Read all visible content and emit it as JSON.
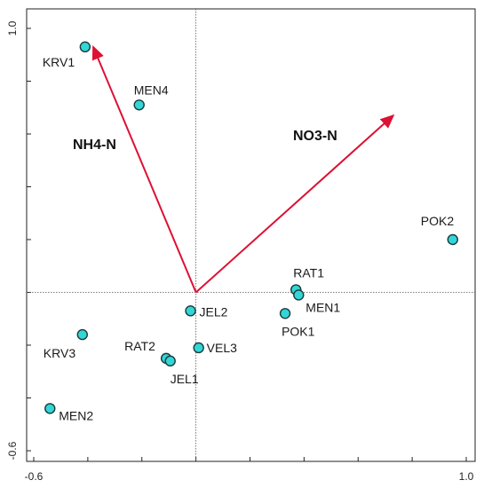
{
  "chart_data": {
    "type": "scatter",
    "title": "",
    "xlabel": "",
    "ylabel": "",
    "xlim": [
      -0.6,
      1.0
    ],
    "ylim": [
      -0.6,
      1.0
    ],
    "x_tick_labels": [
      {
        "value": -0.6,
        "text": "-0.6"
      },
      {
        "value": 1.0,
        "text": "1.0"
      }
    ],
    "y_tick_labels": [
      {
        "value": -0.6,
        "text": "-0.6"
      },
      {
        "value": 1.0,
        "text": "1.0"
      }
    ],
    "x_minor_ticks": [
      -0.4,
      -0.2,
      0.0,
      0.2,
      0.4,
      0.6,
      0.8
    ],
    "y_minor_ticks": [
      -0.4,
      -0.2,
      0.0,
      0.2,
      0.4,
      0.6,
      0.8
    ],
    "reference_lines": {
      "x": 0.0,
      "y": 0.0,
      "style": "dotted"
    },
    "vectors": [
      {
        "name": "NH4-N",
        "x": -0.38,
        "y": 0.93
      },
      {
        "name": "NO3-N",
        "x": 0.73,
        "y": 0.67
      }
    ],
    "points": [
      {
        "name": "KRV1",
        "x": -0.41,
        "y": 0.93
      },
      {
        "name": "MEN4",
        "x": -0.21,
        "y": 0.71
      },
      {
        "name": "POK2",
        "x": 0.95,
        "y": 0.2
      },
      {
        "name": "RAT1",
        "x": 0.37,
        "y": 0.01
      },
      {
        "name": "MEN1",
        "x": 0.38,
        "y": -0.01
      },
      {
        "name": "POK1",
        "x": 0.33,
        "y": -0.08
      },
      {
        "name": "JEL2",
        "x": -0.02,
        "y": -0.07
      },
      {
        "name": "KRV3",
        "x": -0.42,
        "y": -0.16
      },
      {
        "name": "VEL3",
        "x": 0.01,
        "y": -0.21
      },
      {
        "name": "RAT2",
        "x": -0.11,
        "y": -0.25
      },
      {
        "name": "JEL1",
        "x": -0.095,
        "y": -0.26
      },
      {
        "name": "MEN2",
        "x": -0.54,
        "y": -0.44
      }
    ],
    "colors": {
      "point_fill": "#33d6d6",
      "point_stroke": "#1a3a3a",
      "vector": "#dd1133",
      "frame": "#222222"
    }
  }
}
